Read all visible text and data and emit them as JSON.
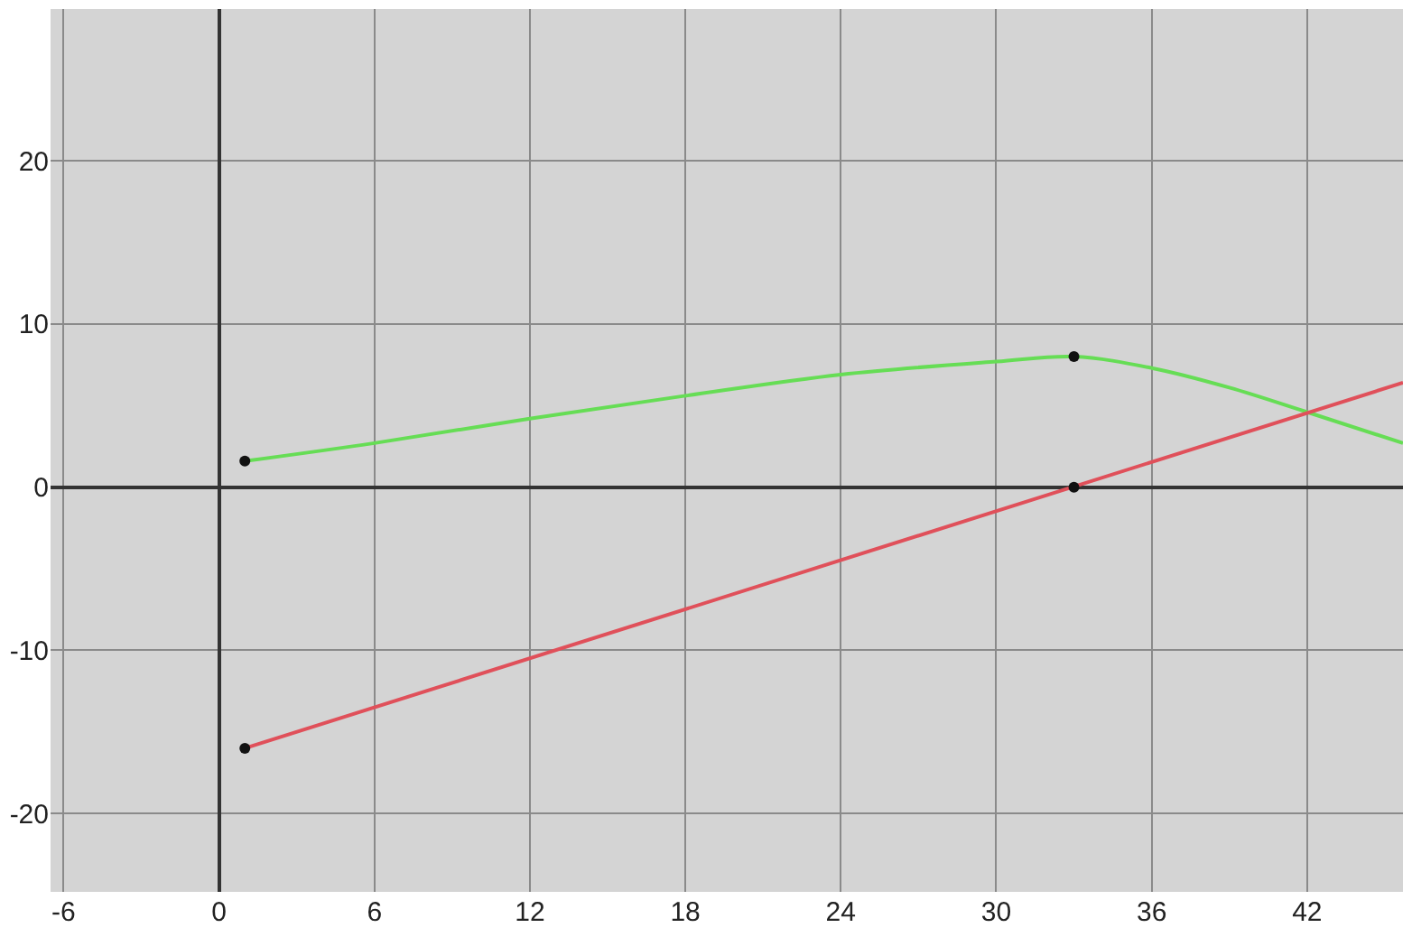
{
  "chart_data": {
    "type": "line",
    "xlim": [
      -6.5,
      45.7
    ],
    "ylim": [
      -24.8,
      29.3
    ],
    "xticks": [
      -6,
      0,
      6,
      12,
      18,
      24,
      30,
      36,
      42
    ],
    "yticks": [
      -20,
      -10,
      0,
      10,
      20
    ],
    "grid": true,
    "series": [
      {
        "color": "#66dd55",
        "x": [
          1,
          6,
          12,
          18,
          24,
          30,
          33,
          36,
          39,
          42,
          45.7
        ],
        "values": [
          1.6,
          2.7,
          4.2,
          5.6,
          6.9,
          7.7,
          8,
          7.3,
          6.1,
          4.6,
          2.7
        ]
      },
      {
        "color": "#e0505a",
        "x": [
          1,
          45.7
        ],
        "values": [
          -16,
          6.4
        ]
      },
      {
        "type": "scatter",
        "color": "#111111",
        "marker": "circle",
        "x": [
          1,
          33,
          1,
          33
        ],
        "values": [
          1.6,
          8,
          -16,
          0
        ]
      }
    ]
  }
}
